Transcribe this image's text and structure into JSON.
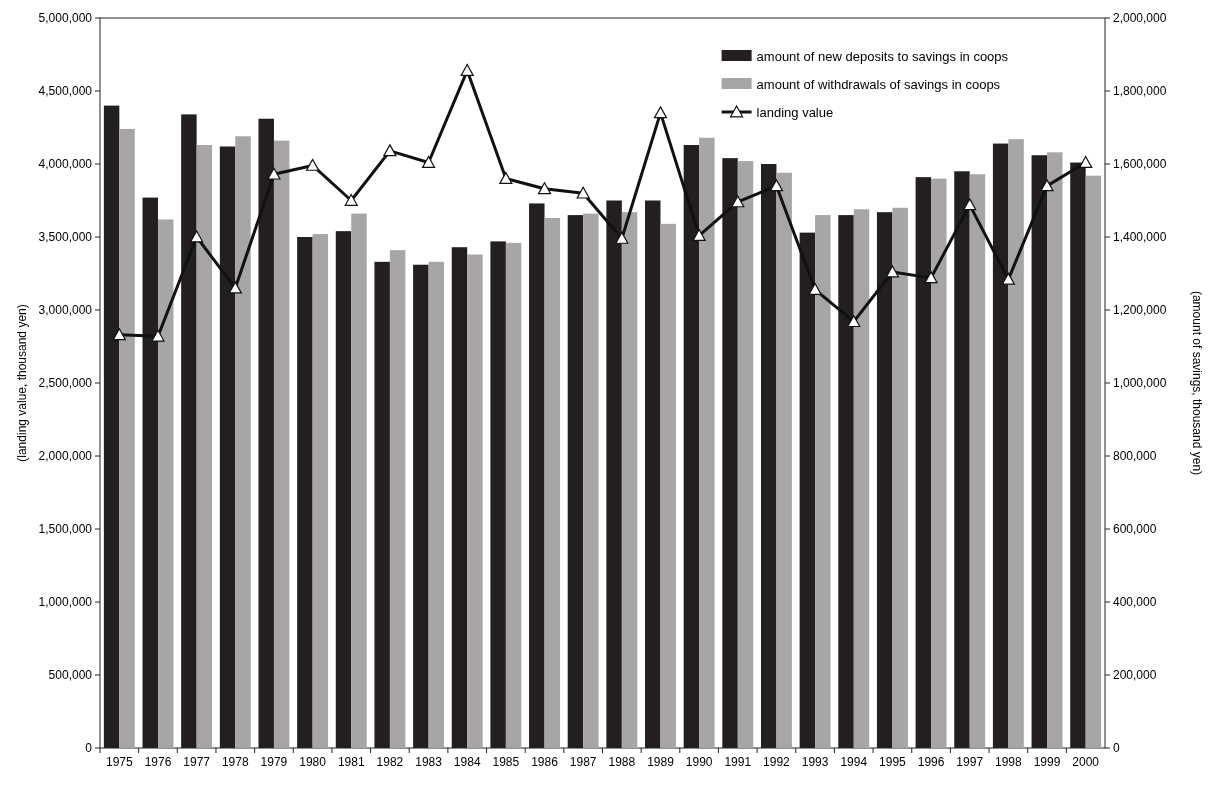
{
  "chart_data": {
    "type": "bar",
    "ylabel": "(landing value, thousand yen)",
    "y2label": "(amount of savings, thousand yen)",
    "categories": [
      "1975",
      "1976",
      "1977",
      "1978",
      "1979",
      "1980",
      "1981",
      "1982",
      "1983",
      "1984",
      "1985",
      "1986",
      "1987",
      "1988",
      "1989",
      "1990",
      "1991",
      "1992",
      "1993",
      "1994",
      "1995",
      "1996",
      "1997",
      "1998",
      "1999",
      "2000"
    ],
    "series": [
      {
        "name": "amount of new deposits to savings in coops",
        "color": "#231f20",
        "axis": "y2",
        "values": [
          1760000,
          1508000,
          1736000,
          1648000,
          1724000,
          1400000,
          1416000,
          1332000,
          1324000,
          1372000,
          1388000,
          1492000,
          1460000,
          1500000,
          1500000,
          1652000,
          1616000,
          1600000,
          1412000,
          1460000,
          1468000,
          1564000,
          1580000,
          1656000,
          1624000,
          1604000
        ]
      },
      {
        "name": "amount of withdrawals of savings in coops",
        "color": "#a7a5a6",
        "axis": "y2",
        "values": [
          1696000,
          1448000,
          1652000,
          1676000,
          1664000,
          1408000,
          1464000,
          1364000,
          1332000,
          1352000,
          1384000,
          1452000,
          1464000,
          1468000,
          1436000,
          1672000,
          1608000,
          1576000,
          1460000,
          1476000,
          1480000,
          1560000,
          1572000,
          1668000,
          1632000,
          1568000
        ]
      },
      {
        "name": "landing value",
        "type": "line",
        "color": "#111111",
        "marker": "triangle",
        "values": [
          2830000,
          2820000,
          3500000,
          3150000,
          3930000,
          3990000,
          3750000,
          4090000,
          4010000,
          4640000,
          3900000,
          3830000,
          3800000,
          3490000,
          4350000,
          3510000,
          3740000,
          3850000,
          3140000,
          2920000,
          3260000,
          3220000,
          3720000,
          3210000,
          3850000,
          4010000
        ]
      }
    ],
    "ylim": [
      0,
      5000000
    ],
    "yticks": [
      {
        "value": 0,
        "label": "0"
      },
      {
        "value": 500000,
        "label": "500,000"
      },
      {
        "value": 1000000,
        "label": "1,000,000"
      },
      {
        "value": 1500000,
        "label": "1,500,000"
      },
      {
        "value": 2000000,
        "label": "2,000,000"
      },
      {
        "value": 2500000,
        "label": "2,500,000"
      },
      {
        "value": 3000000,
        "label": "3,000,000"
      },
      {
        "value": 3500000,
        "label": "3,500,000"
      },
      {
        "value": 4000000,
        "label": "4,000,000"
      },
      {
        "value": 4500000,
        "label": "4,500,000"
      },
      {
        "value": 5000000,
        "label": "5,000,000"
      }
    ],
    "y2lim": [
      0,
      2000000
    ],
    "y2ticks": [
      {
        "value": 0,
        "label": "0"
      },
      {
        "value": 200000,
        "label": "200,000"
      },
      {
        "value": 400000,
        "label": "400,000"
      },
      {
        "value": 600000,
        "label": "600,000"
      },
      {
        "value": 800000,
        "label": "800,000"
      },
      {
        "value": 1000000,
        "label": "1,000,000"
      },
      {
        "value": 1200000,
        "label": "1,200,000"
      },
      {
        "value": 1400000,
        "label": "1,400,000"
      },
      {
        "value": 1600000,
        "label": "1,600,000"
      },
      {
        "value": 1800000,
        "label": "1,800,000"
      },
      {
        "value": 2000000,
        "label": "2,000,000"
      }
    ],
    "legend": "top",
    "grid": false
  }
}
